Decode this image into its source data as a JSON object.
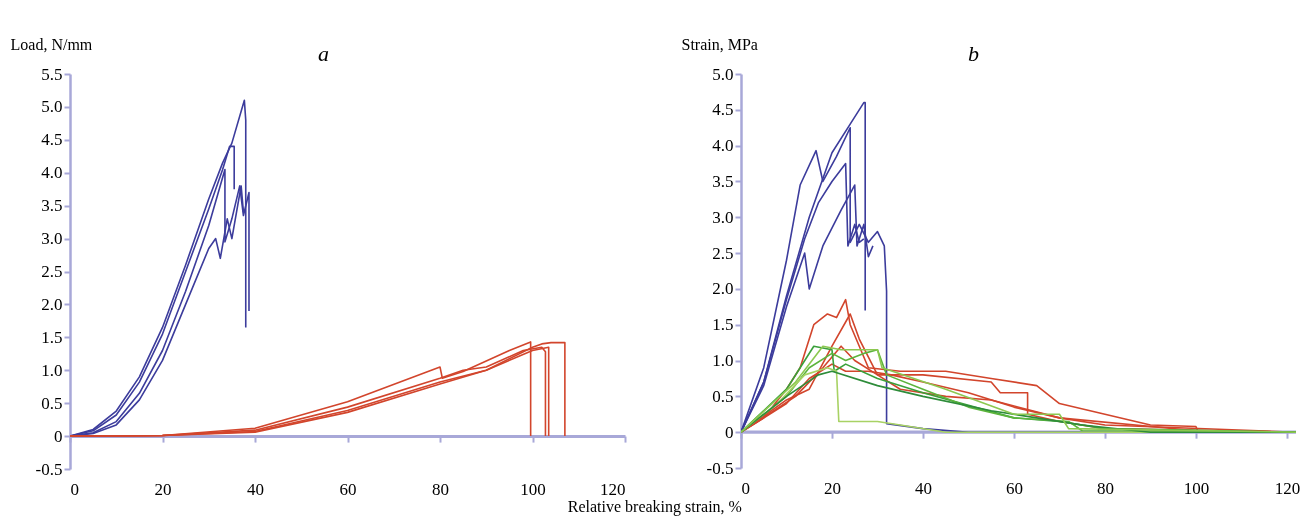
{
  "chart_data": [
    {
      "type": "line",
      "title": "a",
      "xlabel": "Relative breaking strain, %",
      "ylabel": "Load, N/mm",
      "xlim": [
        0,
        120
      ],
      "xticks": [
        0,
        20,
        40,
        60,
        80,
        100,
        120
      ],
      "ylim": [
        -0.5,
        5.5
      ],
      "yticks": [
        -0.5,
        0,
        0.5,
        {
          "value": 1,
          "label": "1.0"
        },
        1.5,
        {
          "value": 2,
          "label": "2.0"
        },
        2.5,
        {
          "value": 3,
          "label": "3.0"
        },
        3.5,
        {
          "value": 4,
          "label": "4.0"
        },
        4.5,
        {
          "value": 5,
          "label": "5.0"
        },
        5.5
      ],
      "series": [
        {
          "color": "#3c3c9c",
          "x": [
            0,
            5,
            10,
            15,
            20,
            25,
            30,
            33,
            35,
            37.7,
            38,
            38
          ],
          "values": [
            0,
            0.1,
            0.38,
            0.9,
            1.65,
            2.6,
            3.6,
            4.15,
            4.45,
            5.1,
            4.8,
            1.65
          ]
        },
        {
          "color": "#3c3c9c",
          "x": [
            0,
            5,
            10,
            15,
            20,
            25,
            30,
            33,
            34.5,
            35.5,
            35.5
          ],
          "values": [
            0,
            0.08,
            0.32,
            0.82,
            1.55,
            2.5,
            3.45,
            4.05,
            4.4,
            4.4,
            3.75
          ]
        },
        {
          "color": "#3c3c9c",
          "x": [
            0,
            5,
            10,
            15,
            20,
            25,
            30,
            33.5,
            33.5,
            35,
            36.7,
            37.5,
            38.7,
            38.7
          ],
          "values": [
            0,
            0.05,
            0.22,
            0.65,
            1.3,
            2.2,
            3.2,
            4.05,
            2.95,
            3.3,
            3.8,
            3.35,
            3.7,
            1.9
          ]
        },
        {
          "color": "#3c3c9c",
          "x": [
            0,
            5,
            10,
            15,
            20,
            25,
            30,
            31.5,
            32.5,
            34,
            35,
            37,
            37.5
          ],
          "values": [
            0,
            0.04,
            0.17,
            0.55,
            1.15,
            2.0,
            2.85,
            3.0,
            2.7,
            3.3,
            3.0,
            3.8,
            3.4
          ]
        },
        {
          "color": "#d2452c",
          "x": [
            0,
            20,
            40,
            60,
            80,
            80.5,
            85,
            95,
            99.6,
            99.6
          ],
          "values": [
            0,
            0.01,
            0.12,
            0.52,
            1.05,
            0.88,
            0.98,
            1.3,
            1.43,
            0
          ]
        },
        {
          "color": "#d2452c",
          "x": [
            0,
            20,
            40,
            60,
            80,
            85,
            90,
            98,
            102,
            102.8,
            102.8
          ],
          "values": [
            0,
            0.01,
            0.09,
            0.44,
            0.88,
            1.0,
            1.05,
            1.3,
            1.35,
            1.28,
            0
          ]
        },
        {
          "color": "#d2452c",
          "x": [
            0,
            20,
            40,
            60,
            80,
            90,
            100,
            103.5,
            103.5
          ],
          "values": [
            0,
            0.01,
            0.07,
            0.39,
            0.82,
            1.0,
            1.3,
            1.35,
            0
          ]
        },
        {
          "color": "#d2452c",
          "x": [
            0,
            20,
            40,
            60,
            80,
            90,
            100,
            102,
            104,
            107,
            107
          ],
          "values": [
            0,
            0.01,
            0.06,
            0.36,
            0.79,
            1.0,
            1.35,
            1.4,
            1.42,
            1.42,
            0
          ]
        }
      ]
    },
    {
      "type": "line",
      "title": "b",
      "ref_lines": [
        {
          "axis": "y",
          "value": 0,
          "color": "#a8a8d8"
        }
      ],
      "ylabel": "Strain, MPa",
      "xlim": [
        0,
        122
      ],
      "xticks": [
        0,
        20,
        40,
        60,
        80,
        100,
        120
      ],
      "ylim": [
        -0.5,
        5
      ],
      "yticks": [
        -0.5,
        0,
        0.5,
        {
          "value": 1,
          "label": "1.0"
        },
        1.5,
        {
          "value": 2,
          "label": "2.0"
        },
        2.5,
        {
          "value": 3,
          "label": "3.0"
        },
        3.5,
        {
          "value": 4,
          "label": "4.0"
        },
        4.5,
        {
          "value": 5,
          "label": "5.0"
        }
      ],
      "series": [
        {
          "color": "#3c3c9c",
          "x": [
            0,
            5,
            10,
            13,
            16.5,
            18,
            21,
            24,
            24,
            26,
            28,
            30,
            31.5,
            32,
            32,
            40,
            50,
            122
          ],
          "values": [
            0,
            0.9,
            2.4,
            3.45,
            3.93,
            3.5,
            3.85,
            4.25,
            2.65,
            2.9,
            2.65,
            2.8,
            2.6,
            1.97,
            0.12,
            0.05,
            0,
            0
          ]
        },
        {
          "color": "#3c3c9c",
          "x": [
            0,
            5,
            10,
            15,
            20,
            24,
            27,
            27.3,
            27.3
          ],
          "values": [
            0,
            0.7,
            1.9,
            3.0,
            3.9,
            4.3,
            4.6,
            4.6,
            1.7
          ]
        },
        {
          "color": "#3c3c9c",
          "x": [
            0,
            5,
            10,
            14,
            17,
            20,
            23,
            23.5,
            25,
            26,
            27
          ],
          "values": [
            0,
            0.7,
            1.85,
            2.7,
            3.2,
            3.5,
            3.75,
            2.6,
            2.9,
            2.65,
            2.7
          ]
        },
        {
          "color": "#3c3c9c",
          "x": [
            0,
            5,
            10,
            14,
            15,
            18,
            22,
            25,
            25.5,
            27,
            28,
            29
          ],
          "values": [
            0,
            0.65,
            1.75,
            2.5,
            2.0,
            2.6,
            3.1,
            3.45,
            2.6,
            2.9,
            2.45,
            2.6
          ]
        },
        {
          "color": "#d2452c",
          "x": [
            0,
            5,
            10,
            13,
            16,
            19,
            21,
            23,
            24,
            26,
            28,
            35,
            45,
            55,
            65,
            70,
            80,
            90,
            100,
            100.5,
            122
          ],
          "values": [
            0,
            0.2,
            0.6,
            0.9,
            1.5,
            1.65,
            1.6,
            1.85,
            1.5,
            1.2,
            0.9,
            0.85,
            0.85,
            0.75,
            0.65,
            0.4,
            0.25,
            0.1,
            0.08,
            0,
            0
          ]
        },
        {
          "color": "#d2452c",
          "x": [
            0,
            10,
            15,
            20,
            24,
            26,
            30,
            40,
            55,
            57,
            63,
            63,
            70,
            80,
            122
          ],
          "values": [
            0,
            0.45,
            0.6,
            1.2,
            1.65,
            1.3,
            0.8,
            0.8,
            0.7,
            0.55,
            0.55,
            0.25,
            0.15,
            0.05,
            0
          ]
        },
        {
          "color": "#d2452c",
          "x": [
            0,
            10,
            15,
            20,
            23,
            28,
            33,
            40,
            50,
            60,
            70,
            80,
            122
          ],
          "values": [
            0,
            0.4,
            0.75,
            0.95,
            0.85,
            0.85,
            0.8,
            0.7,
            0.55,
            0.35,
            0.2,
            0.1,
            0
          ]
        },
        {
          "color": "#d2452c",
          "x": [
            0,
            12,
            18,
            22,
            25,
            30,
            35,
            45,
            55,
            70,
            100,
            122
          ],
          "values": [
            0,
            0.5,
            0.9,
            1.2,
            1.0,
            0.8,
            0.6,
            0.5,
            0.45,
            0.2,
            0.02,
            0
          ]
        },
        {
          "color": "#3aa03a",
          "x": [
            0,
            10,
            16,
            20,
            20.5,
            23,
            30,
            40,
            60,
            70,
            80,
            122
          ],
          "values": [
            0,
            0.6,
            1.2,
            1.15,
            0.85,
            0.95,
            0.75,
            0.55,
            0.2,
            0.15,
            0.05,
            0
          ]
        },
        {
          "color": "#5cb43c",
          "x": [
            0,
            10,
            15,
            20,
            23,
            27,
            30,
            32,
            40,
            50,
            60,
            72,
            75,
            122
          ],
          "values": [
            0,
            0.5,
            0.9,
            1.1,
            1.0,
            1.1,
            1.15,
            0.8,
            0.6,
            0.35,
            0.2,
            0.15,
            0.02,
            0
          ]
        },
        {
          "color": "#a8d264",
          "x": [
            0,
            8,
            14,
            19,
            21,
            21.5,
            30,
            35,
            45,
            122
          ],
          "values": [
            0,
            0.4,
            0.8,
            0.9,
            0.85,
            0.15,
            0.15,
            0.1,
            0,
            0
          ]
        },
        {
          "color": "#2e8c3a",
          "x": [
            0,
            10,
            17,
            20,
            30,
            40,
            55,
            65,
            75,
            90,
            122
          ],
          "values": [
            0,
            0.5,
            0.8,
            0.85,
            0.65,
            0.5,
            0.3,
            0.2,
            0.1,
            0,
            0
          ]
        },
        {
          "color": "#8cc850",
          "x": [
            0,
            12,
            18,
            22,
            30,
            31,
            45,
            60,
            70,
            72,
            122
          ],
          "values": [
            0,
            0.7,
            1.2,
            1.15,
            1.15,
            0.9,
            0.6,
            0.25,
            0.25,
            0.05,
            0
          ]
        }
      ]
    }
  ]
}
